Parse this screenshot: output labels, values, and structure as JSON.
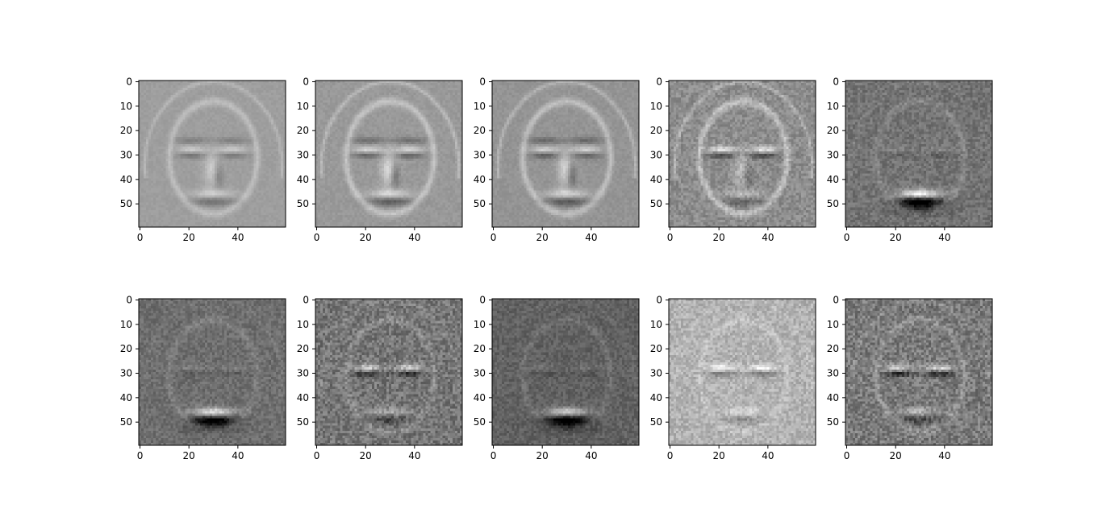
{
  "chart_data": {
    "type": "heatmap",
    "layout": {
      "rows": 2,
      "cols": 5
    },
    "colormap": "gray",
    "subplots": [
      {
        "index": 1,
        "background": 0.62,
        "contrast": 0.7,
        "style": "relief",
        "xlim": [
          0,
          59
        ],
        "ylim": [
          59,
          0
        ],
        "xticks": [
          {
            "value": 0,
            "label": "0"
          },
          {
            "value": 20,
            "label": "20"
          },
          {
            "value": 40,
            "label": "40"
          }
        ],
        "yticks": [
          {
            "value": 0,
            "label": "0"
          },
          {
            "value": 10,
            "label": "10"
          },
          {
            "value": 20,
            "label": "20"
          },
          {
            "value": 30,
            "label": "30"
          },
          {
            "value": 40,
            "label": "40"
          },
          {
            "value": 50,
            "label": "50"
          }
        ]
      },
      {
        "index": 2,
        "background": 0.6,
        "contrast": 0.95,
        "style": "relief",
        "xlim": [
          0,
          59
        ],
        "ylim": [
          59,
          0
        ],
        "xticks": [
          {
            "value": 0,
            "label": "0"
          },
          {
            "value": 20,
            "label": "20"
          },
          {
            "value": 40,
            "label": "40"
          }
        ],
        "yticks": [
          {
            "value": 0,
            "label": "0"
          },
          {
            "value": 10,
            "label": "10"
          },
          {
            "value": 20,
            "label": "20"
          },
          {
            "value": 30,
            "label": "30"
          },
          {
            "value": 40,
            "label": "40"
          },
          {
            "value": 50,
            "label": "50"
          }
        ]
      },
      {
        "index": 3,
        "background": 0.58,
        "contrast": 0.95,
        "style": "relief",
        "xlim": [
          0,
          59
        ],
        "ylim": [
          59,
          0
        ],
        "xticks": [
          {
            "value": 0,
            "label": "0"
          },
          {
            "value": 20,
            "label": "20"
          },
          {
            "value": 40,
            "label": "40"
          }
        ],
        "yticks": [
          {
            "value": 0,
            "label": "0"
          },
          {
            "value": 10,
            "label": "10"
          },
          {
            "value": 20,
            "label": "20"
          },
          {
            "value": 30,
            "label": "30"
          },
          {
            "value": 40,
            "label": "40"
          },
          {
            "value": 50,
            "label": "50"
          }
        ]
      },
      {
        "index": 4,
        "background": 0.55,
        "contrast": 0.9,
        "style": "edge",
        "xlim": [
          0,
          59
        ],
        "ylim": [
          59,
          0
        ],
        "xticks": [
          {
            "value": 0,
            "label": "0"
          },
          {
            "value": 20,
            "label": "20"
          },
          {
            "value": 40,
            "label": "40"
          }
        ],
        "yticks": [
          {
            "value": 0,
            "label": "0"
          },
          {
            "value": 10,
            "label": "10"
          },
          {
            "value": 20,
            "label": "20"
          },
          {
            "value": 30,
            "label": "30"
          },
          {
            "value": 40,
            "label": "40"
          },
          {
            "value": 50,
            "label": "50"
          }
        ]
      },
      {
        "index": 5,
        "background": 0.45,
        "contrast": 0.9,
        "style": "mouth",
        "xlim": [
          0,
          59
        ],
        "ylim": [
          59,
          0
        ],
        "xticks": [
          {
            "value": 0,
            "label": "0"
          },
          {
            "value": 20,
            "label": "20"
          },
          {
            "value": 40,
            "label": "40"
          }
        ],
        "yticks": [
          {
            "value": 0,
            "label": "0"
          },
          {
            "value": 10,
            "label": "10"
          },
          {
            "value": 20,
            "label": "20"
          },
          {
            "value": 30,
            "label": "30"
          },
          {
            "value": 40,
            "label": "40"
          },
          {
            "value": 50,
            "label": "50"
          }
        ]
      },
      {
        "index": 6,
        "background": 0.43,
        "contrast": 0.8,
        "style": "mouth",
        "xlim": [
          0,
          59
        ],
        "ylim": [
          59,
          0
        ],
        "xticks": [
          {
            "value": 0,
            "label": "0"
          },
          {
            "value": 20,
            "label": "20"
          },
          {
            "value": 40,
            "label": "40"
          }
        ],
        "yticks": [
          {
            "value": 0,
            "label": "0"
          },
          {
            "value": 10,
            "label": "10"
          },
          {
            "value": 20,
            "label": "20"
          },
          {
            "value": 30,
            "label": "30"
          },
          {
            "value": 40,
            "label": "40"
          },
          {
            "value": 50,
            "label": "50"
          }
        ]
      },
      {
        "index": 7,
        "background": 0.46,
        "contrast": 0.85,
        "style": "noisy",
        "xlim": [
          0,
          59
        ],
        "ylim": [
          59,
          0
        ],
        "xticks": [
          {
            "value": 0,
            "label": "0"
          },
          {
            "value": 20,
            "label": "20"
          },
          {
            "value": 40,
            "label": "40"
          }
        ],
        "yticks": [
          {
            "value": 0,
            "label": "0"
          },
          {
            "value": 10,
            "label": "10"
          },
          {
            "value": 20,
            "label": "20"
          },
          {
            "value": 30,
            "label": "30"
          },
          {
            "value": 40,
            "label": "40"
          },
          {
            "value": 50,
            "label": "50"
          }
        ]
      },
      {
        "index": 8,
        "background": 0.38,
        "contrast": 0.75,
        "style": "mouth",
        "xlim": [
          0,
          59
        ],
        "ylim": [
          59,
          0
        ],
        "xticks": [
          {
            "value": 0,
            "label": "0"
          },
          {
            "value": 20,
            "label": "20"
          },
          {
            "value": 40,
            "label": "40"
          }
        ],
        "yticks": [
          {
            "value": 0,
            "label": "0"
          },
          {
            "value": 10,
            "label": "10"
          },
          {
            "value": 20,
            "label": "20"
          },
          {
            "value": 30,
            "label": "30"
          },
          {
            "value": 40,
            "label": "40"
          },
          {
            "value": 50,
            "label": "50"
          }
        ]
      },
      {
        "index": 9,
        "background": 0.7,
        "contrast": 0.65,
        "style": "noisy",
        "xlim": [
          0,
          59
        ],
        "ylim": [
          59,
          0
        ],
        "xticks": [
          {
            "value": 0,
            "label": "0"
          },
          {
            "value": 20,
            "label": "20"
          },
          {
            "value": 40,
            "label": "40"
          }
        ],
        "yticks": [
          {
            "value": 0,
            "label": "0"
          },
          {
            "value": 10,
            "label": "10"
          },
          {
            "value": 20,
            "label": "20"
          },
          {
            "value": 30,
            "label": "30"
          },
          {
            "value": 40,
            "label": "40"
          },
          {
            "value": 50,
            "label": "50"
          }
        ]
      },
      {
        "index": 10,
        "background": 0.48,
        "contrast": 0.9,
        "style": "noisy",
        "xlim": [
          0,
          59
        ],
        "ylim": [
          59,
          0
        ],
        "xticks": [
          {
            "value": 0,
            "label": "0"
          },
          {
            "value": 20,
            "label": "20"
          },
          {
            "value": 40,
            "label": "40"
          }
        ],
        "yticks": [
          {
            "value": 0,
            "label": "0"
          },
          {
            "value": 10,
            "label": "10"
          },
          {
            "value": 20,
            "label": "20"
          },
          {
            "value": 30,
            "label": "30"
          },
          {
            "value": 40,
            "label": "40"
          },
          {
            "value": 50,
            "label": "50"
          }
        ]
      }
    ]
  }
}
